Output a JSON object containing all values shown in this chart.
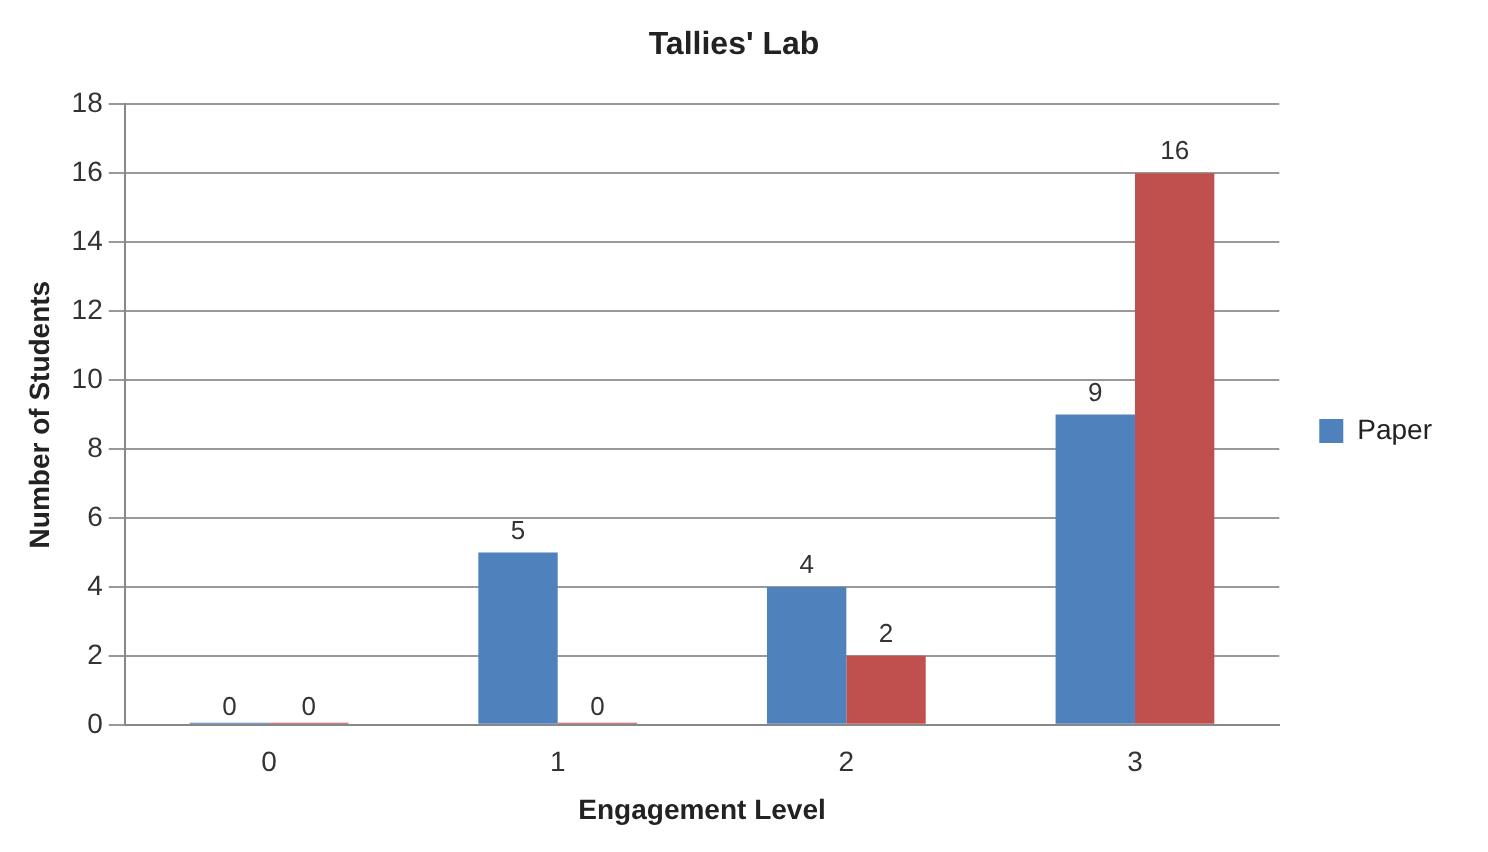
{
  "chart_data": {
    "type": "bar",
    "title": "Tallies' Lab",
    "xlabel": "Engagement Level",
    "ylabel": "Number of Students",
    "categories": [
      "0",
      "1",
      "2",
      "3"
    ],
    "series": [
      {
        "name": "Paper",
        "color": "#4f81bd",
        "values": [
          0,
          5,
          4,
          9
        ]
      },
      {
        "color": "#c0504d",
        "values": [
          0,
          0,
          2,
          16
        ]
      }
    ],
    "ylim": [
      0,
      18
    ],
    "yticks": [
      0,
      2,
      4,
      6,
      8,
      10,
      12,
      14,
      16,
      18
    ],
    "grid": "y",
    "legend": "right",
    "data_labels": true
  }
}
